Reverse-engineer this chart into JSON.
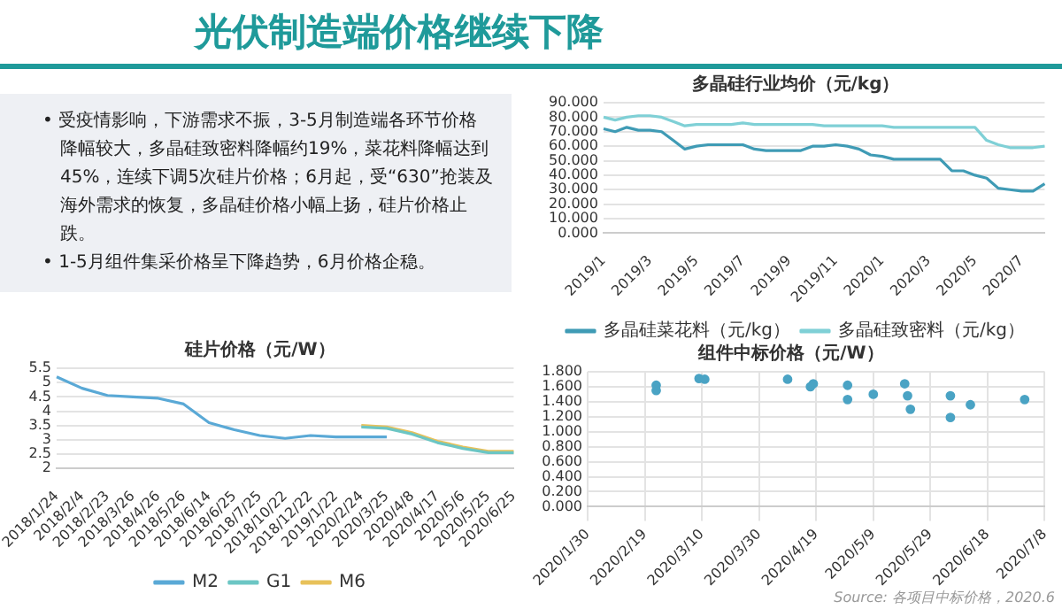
{
  "chart_data": [
    {
      "type": "other",
      "title": "光伏制造端价格继续下降",
      "annotations": [
        "• 受疫情影响，下游需求不振，3-5月制造端各环节价格降幅较大，多晶硅致密料降幅约19%，菜花料降幅达到45%，连续下调5次硅片价格；6月起，受“630”抢装及海外需求的恢复，多晶硅价格小幅上扬，硅片价格止跌。",
        "• 1-5月组件集采价格呈下降趋势，6月价格企稳。"
      ]
    },
    {
      "type": "line",
      "title": "多晶硅行业均价（元/kg）",
      "categories": [
        "2019/1",
        null,
        null,
        null,
        "2019/3",
        null,
        null,
        null,
        "2019/5",
        null,
        null,
        null,
        "2019/7",
        null,
        null,
        null,
        "2019/9",
        null,
        null,
        null,
        "2019/11",
        null,
        null,
        null,
        "2020/1",
        null,
        null,
        null,
        "2020/3",
        null,
        null,
        null,
        "2020/5",
        null,
        null,
        null,
        "2020/7",
        null,
        null
      ],
      "series": [
        {
          "name": "多晶硅菜花料（元/kg）",
          "color": "#3f9bb5",
          "values": [
            72,
            70,
            73,
            71,
            71,
            70,
            64,
            58,
            60,
            61,
            61,
            61,
            61,
            58,
            57,
            57,
            57,
            57,
            60,
            60,
            61,
            60,
            58,
            54,
            53,
            51,
            51,
            51,
            51,
            51,
            43,
            43,
            40,
            38,
            31,
            30,
            29,
            29,
            34
          ]
        },
        {
          "name": "多晶硅致密料（元/kg）",
          "color": "#7fd0d6",
          "values": [
            80,
            78,
            80,
            81,
            81,
            80,
            77,
            74,
            75,
            75,
            75,
            75,
            76,
            75,
            75,
            75,
            75,
            75,
            75,
            74,
            74,
            74,
            74,
            74,
            74,
            73,
            73,
            73,
            73,
            73,
            73,
            73,
            73,
            64,
            61,
            59,
            59,
            59,
            60
          ]
        }
      ],
      "ylim": [
        0,
        90
      ],
      "yticks": [
        {
          "value": 0,
          "label": "0.000"
        },
        {
          "value": 10,
          "label": "10.000"
        },
        {
          "value": 20,
          "label": "20.000"
        },
        {
          "value": 30,
          "label": "30.000"
        },
        {
          "value": 40,
          "label": "40.000"
        },
        {
          "value": 50,
          "label": "50.000"
        },
        {
          "value": 60,
          "label": "60.000"
        },
        {
          "value": 70,
          "label": "70.000"
        },
        {
          "value": 80,
          "label": "80.000"
        },
        {
          "value": 90,
          "label": "90.000"
        }
      ],
      "grid": "y",
      "legend": "bottom",
      "marker": "none",
      "line_style": "solid"
    },
    {
      "type": "line",
      "title": "硅片价格（元/W）",
      "categories": [
        "2018/1/24",
        "2018/2/4",
        "2018/2/23",
        "2018/3/26",
        "2018/4/26",
        "2018/5/26",
        "2018/6/14",
        "2018/6/25",
        "2018/7/25",
        "2018/10/22",
        "2018/12/22",
        "2019/1/22",
        "2020/2/24",
        "2020/3/25",
        "2020/4/8",
        "2020/4/17",
        "2020/5/6",
        "2020/5/25",
        "2020/6/25"
      ],
      "series": [
        {
          "name": "M2",
          "color": "#5aa9d6",
          "values": [
            5.2,
            4.8,
            4.55,
            4.5,
            4.45,
            4.25,
            3.6,
            3.35,
            3.15,
            3.05,
            3.15,
            3.1,
            3.1,
            3.1,
            null,
            null,
            null,
            null,
            null
          ]
        },
        {
          "name": "G1",
          "color": "#6cc6c4",
          "values": [
            null,
            null,
            null,
            null,
            null,
            null,
            null,
            null,
            null,
            null,
            null,
            null,
            3.45,
            3.4,
            3.2,
            2.9,
            2.7,
            2.55,
            2.55
          ]
        },
        {
          "name": "M6",
          "color": "#e8c15a",
          "values": [
            null,
            null,
            null,
            null,
            null,
            null,
            null,
            null,
            null,
            null,
            null,
            null,
            3.5,
            3.45,
            3.25,
            2.95,
            2.75,
            2.6,
            2.6
          ]
        }
      ],
      "ylim": [
        2,
        5.5
      ],
      "yticks": [
        2,
        2.5,
        3,
        3.5,
        4,
        4.5,
        5,
        5.5
      ],
      "grid": "y",
      "legend": "bottom",
      "marker": "none",
      "line_style": "solid"
    },
    {
      "type": "scatter",
      "title": "组件中标价格（元/W）",
      "annotations": [
        "Source: 各项目中标价格，2020.6"
      ],
      "x": [
        "2020-02-23",
        "2020-02-23",
        "2020-03-09",
        "2020-03-11",
        "2020-04-09",
        "2020-04-17",
        "2020-04-18",
        "2020-04-30",
        "2020-04-30",
        "2020-05-09",
        "2020-05-20",
        "2020-05-21",
        "2020-05-22",
        "2020-06-05",
        "2020-06-05",
        "2020-06-12",
        "2020-07-01"
      ],
      "series": [
        {
          "color": "#4aa3c4",
          "values": [
            1.62,
            1.55,
            1.71,
            1.7,
            1.7,
            1.6,
            1.64,
            1.62,
            1.43,
            1.5,
            1.64,
            1.48,
            1.3,
            1.48,
            1.19,
            1.36,
            1.43
          ]
        }
      ],
      "xlim": [
        "2020-01-30",
        "2020-07-08"
      ],
      "xticks": [
        {
          "value": "2020-01-30",
          "label": "2020/1/30"
        },
        {
          "value": "2020-02-19",
          "label": "2020/2/19"
        },
        {
          "value": "2020-03-10",
          "label": "2020/3/10"
        },
        {
          "value": "2020-03-30",
          "label": "2020/3/30"
        },
        {
          "value": "2020-04-19",
          "label": "2020/4/19"
        },
        {
          "value": "2020-05-09",
          "label": "2020/5/9"
        },
        {
          "value": "2020-05-29",
          "label": "2020/5/29"
        },
        {
          "value": "2020-06-18",
          "label": "2020/6/18"
        },
        {
          "value": "2020-07-08",
          "label": "2020/7/8"
        }
      ],
      "ylim": [
        0,
        1.8
      ],
      "yticks": [
        {
          "value": 0,
          "label": "0.000"
        },
        {
          "value": 0.2,
          "label": "0.200"
        },
        {
          "value": 0.4,
          "label": "0.400"
        },
        {
          "value": 0.6,
          "label": "0.600"
        },
        {
          "value": 0.8,
          "label": "0.800"
        },
        {
          "value": 1,
          "label": "1.000"
        },
        {
          "value": 1.2,
          "label": "1.200"
        },
        {
          "value": 1.4,
          "label": "1.400"
        },
        {
          "value": 1.6,
          "label": "1.600"
        },
        {
          "value": 1.8,
          "label": "1.800"
        }
      ],
      "grid": true,
      "legend": false,
      "marker": "circle"
    }
  ]
}
